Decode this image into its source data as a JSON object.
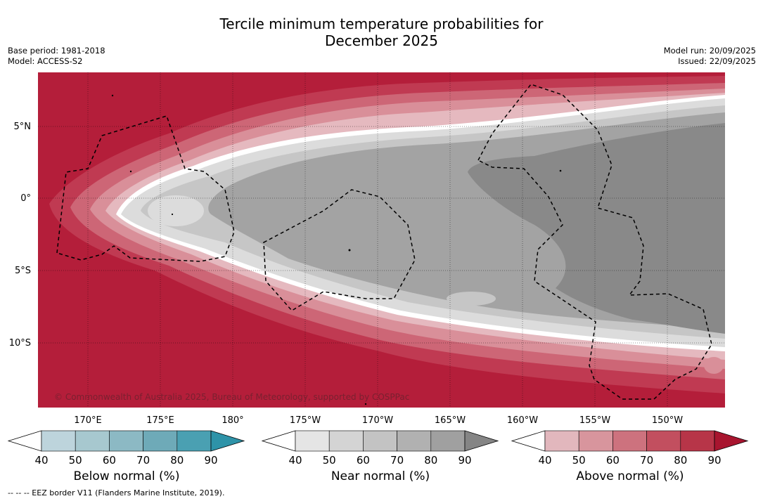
{
  "title_line1": "Tercile minimum temperature probabilities for",
  "title_line2": "December 2025",
  "base_period": "Base period: 1981-2018",
  "model": "Model: ACCESS-S2",
  "model_run": "Model run: 20/09/2025",
  "issued": "Issued: 22/09/2025",
  "copyright": "© Commonwealth of Australia 2025, Bureau of Meteorology, supported by COSPPac",
  "footnote": "--  --  -- EEZ border V11 (Flanders Marine Institute, 2019).",
  "lat_labels": [
    "5°N",
    "0°",
    "5°S",
    "10°S"
  ],
  "lon_labels": [
    "170°E",
    "175°E",
    "180°",
    "175°W",
    "170°W",
    "165°W",
    "160°W",
    "155°W",
    "150°W"
  ],
  "colorbars": [
    {
      "label": "Below normal (%)",
      "ticks": [
        "40",
        "50",
        "60",
        "70",
        "80",
        "90"
      ],
      "colors": [
        "#ffffff",
        "#bdd4dc",
        "#a7c8cf",
        "#8cb9c4",
        "#6eaab8",
        "#4aa0b2",
        "#2e93a8"
      ]
    },
    {
      "label": "Near normal (%)",
      "ticks": [
        "40",
        "50",
        "60",
        "70",
        "80",
        "90"
      ],
      "colors": [
        "#ffffff",
        "#e5e5e5",
        "#d4d4d4",
        "#c3c3c3",
        "#b1b1b1",
        "#a0a0a0",
        "#858585"
      ]
    },
    {
      "label": "Above normal (%)",
      "ticks": [
        "40",
        "50",
        "60",
        "70",
        "80",
        "90"
      ],
      "colors": [
        "#ffffff",
        "#e2b7bd",
        "#d8959d",
        "#cd727e",
        "#c24f5f",
        "#b73548",
        "#a8152f"
      ]
    }
  ]
}
